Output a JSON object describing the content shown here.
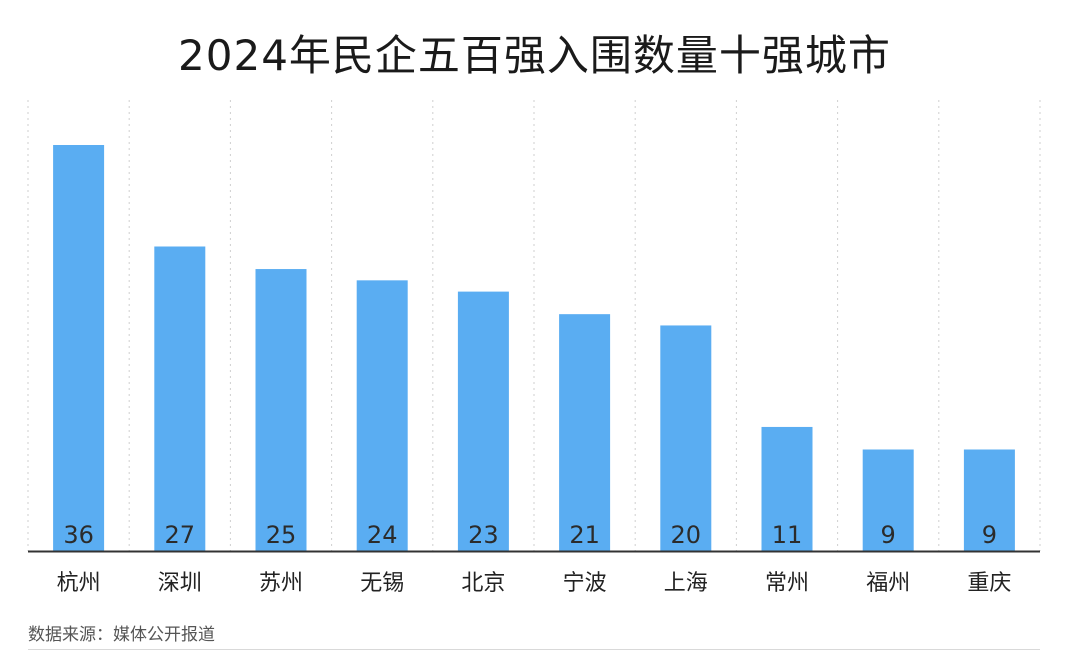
{
  "title": "2024年民企五百强入围数量十强城市",
  "source": "数据来源：媒体公开报道",
  "colors": {
    "bar": "#5aadf2",
    "value_label": "#2b2b2b",
    "axis": "#333333",
    "grid": "#cfcfcf"
  },
  "chart_data": {
    "type": "bar",
    "title": "2024年民企五百强入围数量十强城市",
    "categories": [
      "杭州",
      "深圳",
      "苏州",
      "无锡",
      "北京",
      "宁波",
      "上海",
      "常州",
      "福州",
      "重庆"
    ],
    "values": [
      36,
      27,
      25,
      24,
      23,
      21,
      20,
      11,
      9,
      9
    ],
    "xlabel": "",
    "ylabel": "",
    "ylim": [
      0,
      36
    ],
    "grid": "vertical dotted",
    "legend": "none"
  }
}
